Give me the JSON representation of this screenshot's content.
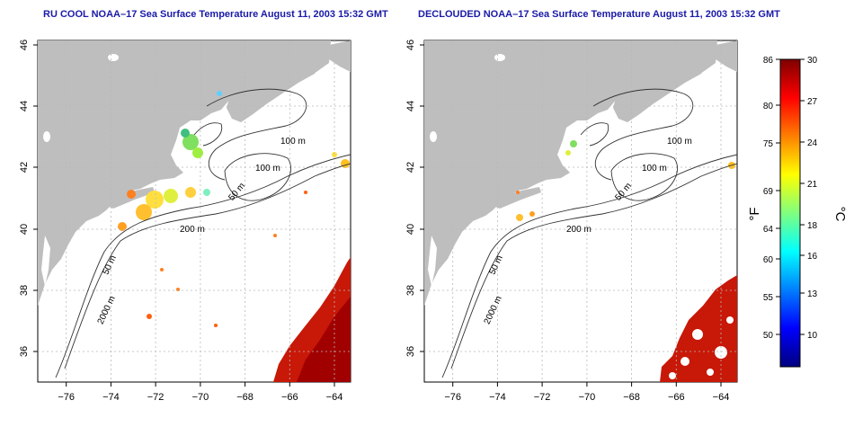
{
  "titles": {
    "left": "RU COOL NOAA–17 Sea Surface Temperature August 11, 2003 15:32 GMT",
    "right": "DECLOUDED NOAA–17 Sea Surface Temperature August 11, 2003 15:32 GMT"
  },
  "map": {
    "lon_ticks": [
      "−76",
      "−74",
      "−72",
      "−70",
      "−68",
      "−66",
      "−64"
    ],
    "lat_ticks": [
      "36",
      "38",
      "40",
      "42",
      "44",
      "46"
    ],
    "lon_range": [
      -77,
      -63
    ],
    "lat_range": [
      35,
      46
    ],
    "contours": {
      "c100a": "100 m",
      "c100b": "100 m",
      "c50a": "50 m",
      "c200": "200 m",
      "c50b": "50 m",
      "c2000": "2000 m"
    }
  },
  "colorbar": {
    "fahrenheit_ticks": [
      "86",
      "80",
      "75",
      "69",
      "64",
      "60",
      "55",
      "50"
    ],
    "celsius_ticks": [
      "30",
      "27",
      "24",
      "21",
      "18",
      "16",
      "13",
      "10"
    ],
    "fahrenheit_unit": "°F",
    "celsius_unit": "°C",
    "colors": [
      "#00007f",
      "#0000ff",
      "#007fff",
      "#00ffff",
      "#7fff7f",
      "#ffff00",
      "#ff7f00",
      "#ff0000",
      "#7f0000"
    ]
  }
}
